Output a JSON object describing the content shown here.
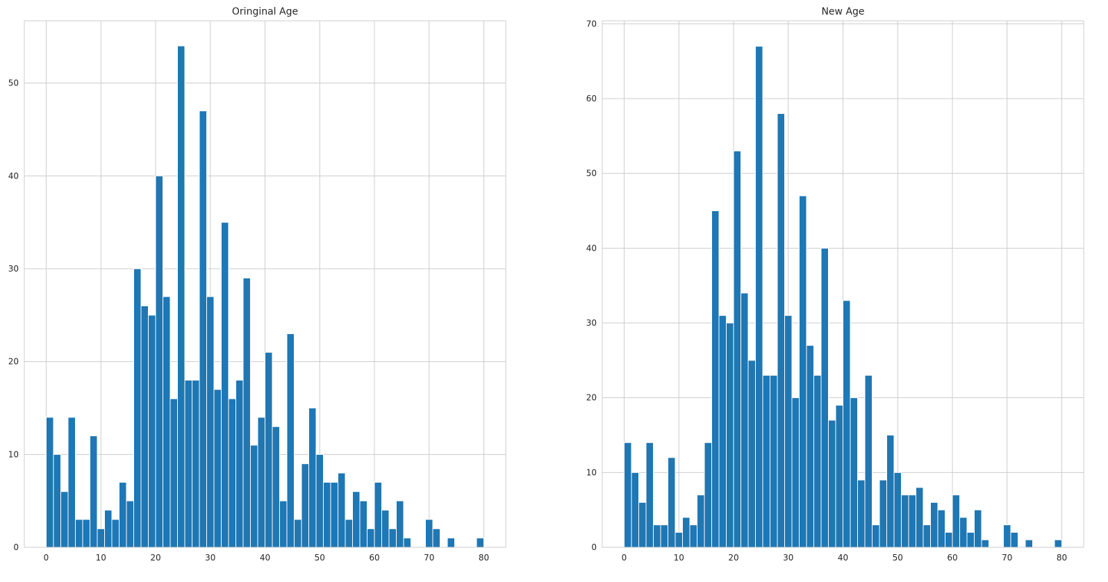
{
  "colors": {
    "bar": "#1f77b4",
    "bar_edge": "#ffffff",
    "grid": "#cccccc",
    "frame": "#cccccc",
    "text": "#262626"
  },
  "chart_data": [
    {
      "type": "bar",
      "title": "Oringinal Age",
      "xlabel": "",
      "ylabel": "",
      "xlim": [
        -4,
        84
      ],
      "ylim": [
        0,
        56.7
      ],
      "xticks": [
        0,
        10,
        20,
        30,
        40,
        50,
        60,
        70,
        80
      ],
      "yticks": [
        0,
        10,
        20,
        30,
        40,
        50
      ],
      "grid": true,
      "bin_start": 0,
      "bin_width": 1.3333,
      "values": [
        14,
        10,
        6,
        14,
        3,
        3,
        12,
        2,
        4,
        3,
        7,
        5,
        30,
        26,
        25,
        40,
        27,
        16,
        54,
        18,
        18,
        47,
        27,
        17,
        35,
        16,
        18,
        29,
        11,
        14,
        21,
        13,
        5,
        23,
        3,
        9,
        15,
        10,
        7,
        7,
        8,
        3,
        6,
        5,
        2,
        7,
        4,
        2,
        5,
        1,
        0,
        0,
        3,
        2,
        0,
        1,
        0,
        0,
        0,
        1
      ]
    },
    {
      "type": "bar",
      "title": "New Age",
      "xlabel": "",
      "ylabel": "",
      "xlim": [
        -4,
        84
      ],
      "ylim": [
        0,
        70.4
      ],
      "xticks": [
        0,
        10,
        20,
        30,
        40,
        50,
        60,
        70,
        80
      ],
      "yticks": [
        0,
        10,
        20,
        30,
        40,
        50,
        60,
        70
      ],
      "grid": true,
      "bin_start": 0,
      "bin_width": 1.3333,
      "values": [
        14,
        10,
        6,
        14,
        3,
        3,
        12,
        2,
        4,
        3,
        7,
        14,
        45,
        31,
        30,
        53,
        34,
        25,
        67,
        23,
        23,
        58,
        31,
        20,
        47,
        27,
        23,
        40,
        17,
        19,
        33,
        20,
        9,
        23,
        3,
        9,
        15,
        10,
        7,
        7,
        8,
        3,
        6,
        5,
        2,
        7,
        4,
        2,
        5,
        1,
        0,
        0,
        3,
        2,
        0,
        1,
        0,
        0,
        0,
        1
      ]
    }
  ]
}
